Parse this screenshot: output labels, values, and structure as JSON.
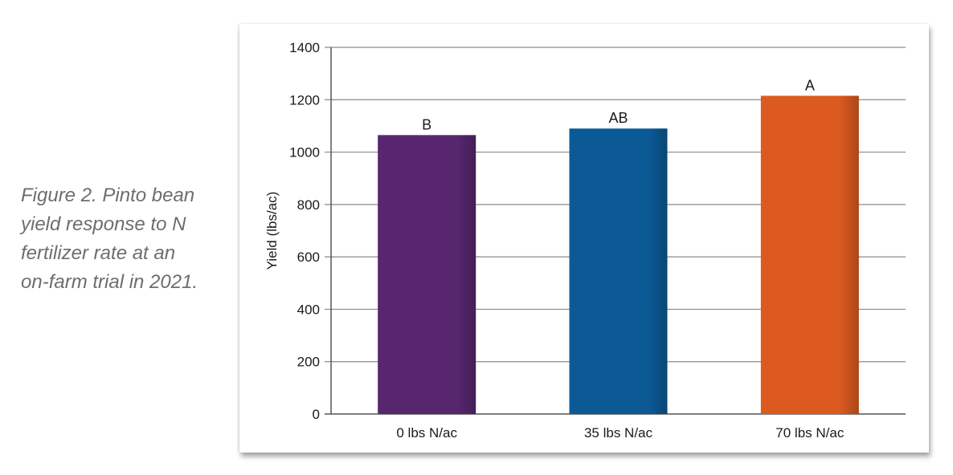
{
  "caption": {
    "lines": [
      "Figure 2. Pinto bean",
      "yield response to N",
      "fertilizer rate at an",
      "on-farm trial in 2021."
    ]
  },
  "chart_data": {
    "type": "bar",
    "categories": [
      "0 lbs N/ac",
      "35 lbs N/ac",
      "70 lbs N/ac"
    ],
    "values": [
      1065,
      1090,
      1215
    ],
    "data_labels": [
      "B",
      "AB",
      "A"
    ],
    "colors": [
      "#58266f",
      "#0b5a96",
      "#dc5a1f"
    ],
    "ylabel": "Yield (lbs/ac)",
    "xlabel": "",
    "ylim": [
      0,
      1400
    ],
    "yticks": [
      0,
      200,
      400,
      600,
      800,
      1000,
      1200,
      1400
    ],
    "grid": true,
    "legend": "none"
  }
}
